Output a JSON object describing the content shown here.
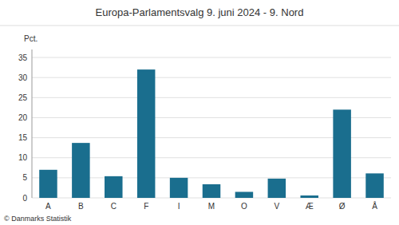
{
  "chart_data": {
    "type": "bar",
    "title": "Europa-Parlamentsvalg 9. juni 2024 - 9. Nord",
    "y_label": "Pct.",
    "footer": "© Danmarks Statistik",
    "categories": [
      "A",
      "B",
      "C",
      "F",
      "I",
      "M",
      "O",
      "V",
      "Æ",
      "Ø",
      "Å"
    ],
    "values": [
      7.0,
      13.7,
      5.4,
      32.0,
      5.0,
      3.4,
      1.5,
      4.8,
      0.6,
      22.0,
      6.1
    ],
    "color": "#1a6e8e",
    "ylim": [
      0,
      37
    ],
    "yticks": [
      0,
      5,
      10,
      15,
      20,
      25,
      30,
      35
    ],
    "grid": true
  }
}
